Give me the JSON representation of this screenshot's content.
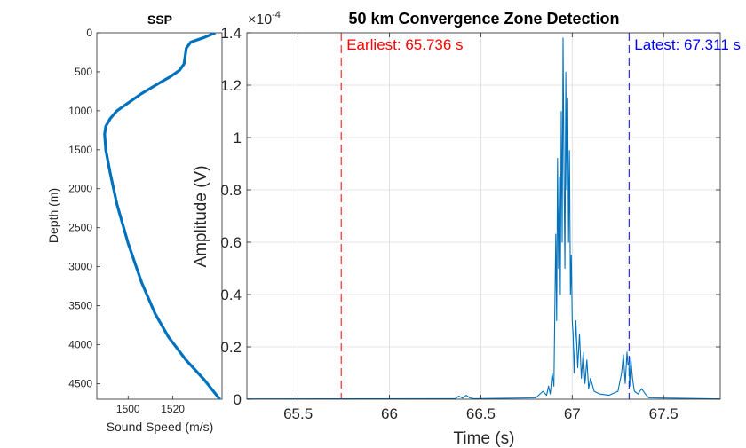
{
  "chart_data": [
    {
      "type": "line",
      "title": "SSP",
      "xlabel": "Sound Speed (m/s)",
      "ylabel": "Depth (m)",
      "xlim": [
        1486,
        1542
      ],
      "ylim": [
        0,
        4700
      ],
      "y_reversed": true,
      "xticks": [
        1500,
        1520
      ],
      "yticks": [
        0,
        500,
        1000,
        1500,
        2000,
        2500,
        3000,
        3500,
        4000,
        4500
      ],
      "line_color": "#0072BD",
      "series": [
        {
          "x": [
            1539,
            1534,
            1528,
            1526,
            1525.5,
            1525,
            1523,
            1519,
            1513,
            1506,
            1500,
            1495,
            1492,
            1490,
            1489.5,
            1490,
            1492,
            1495,
            1500,
            1506,
            1512,
            1518,
            1526,
            1534,
            1541
          ],
          "y": [
            0,
            60,
            120,
            200,
            300,
            400,
            480,
            560,
            660,
            780,
            900,
            1000,
            1100,
            1200,
            1300,
            1500,
            1800,
            2200,
            2700,
            3200,
            3600,
            3900,
            4200,
            4450,
            4700
          ]
        }
      ]
    },
    {
      "type": "line",
      "title": "50 km Convergence Zone Detection",
      "xlabel": "Time (s)",
      "ylabel": "Amplitude (V)",
      "exponent_label": "×10",
      "exponent_power": "-4",
      "xlim": [
        65.22,
        67.81
      ],
      "ylim": [
        0,
        1.4
      ],
      "y_scale_factor": "1e-4",
      "xticks": [
        65.5,
        66,
        66.5,
        67,
        67.5
      ],
      "yticks": [
        0,
        0.2,
        0.4,
        0.6,
        0.8,
        1,
        1.2,
        1.4
      ],
      "grid": true,
      "line_color": "#0072BD",
      "series": [
        {
          "x": [
            65.22,
            66.36,
            66.38,
            66.4,
            66.42,
            66.44,
            66.46,
            66.8,
            66.84,
            66.86,
            66.87,
            66.88,
            66.89,
            66.9,
            66.91,
            66.915,
            66.92,
            66.925,
            66.93,
            66.935,
            66.94,
            66.945,
            66.95,
            66.955,
            66.96,
            66.965,
            66.97,
            66.975,
            66.98,
            66.985,
            66.99,
            66.995,
            67.0,
            67.005,
            67.01,
            67.02,
            67.03,
            67.04,
            67.05,
            67.06,
            67.07,
            67.08,
            67.09,
            67.1,
            67.12,
            67.15,
            67.2,
            67.25,
            67.27,
            67.28,
            67.29,
            67.295,
            67.3,
            67.305,
            67.31,
            67.315,
            67.32,
            67.33,
            67.34,
            67.36,
            67.38,
            67.4,
            67.42,
            67.81
          ],
          "y": [
            0.001,
            0.002,
            0.012,
            0.004,
            0.015,
            0.005,
            0.002,
            0.005,
            0.03,
            0.015,
            0.05,
            0.02,
            0.1,
            0.05,
            0.63,
            0.3,
            0.92,
            0.5,
            0.85,
            0.4,
            1.1,
            0.6,
            1.38,
            0.9,
            0.5,
            1.25,
            0.8,
            1.15,
            0.6,
            0.95,
            0.4,
            0.55,
            0.3,
            0.25,
            0.1,
            0.3,
            0.12,
            0.25,
            0.08,
            0.18,
            0.06,
            0.15,
            0.04,
            0.08,
            0.03,
            0.02,
            0.015,
            0.03,
            0.1,
            0.17,
            0.06,
            0.12,
            0.18,
            0.13,
            0.14,
            0.05,
            0.16,
            0.08,
            0.03,
            0.02,
            0.04,
            0.02,
            0.005,
            0.001
          ]
        }
      ],
      "annotations": [
        {
          "label": "Earliest: 65.736 s",
          "x": 65.736,
          "color": "#FF0000"
        },
        {
          "label": "Latest: 67.311 s",
          "x": 67.311,
          "color": "#0000FF"
        }
      ]
    }
  ]
}
